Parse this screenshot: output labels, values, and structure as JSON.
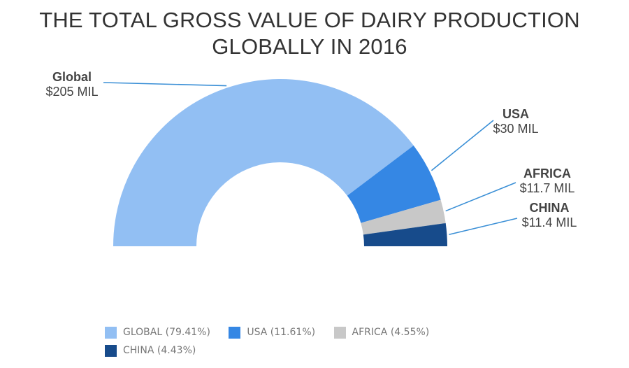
{
  "title": {
    "line1": "THE TOTAL GROSS VALUE OF DAIRY PRODUCTION",
    "line2": "GLOBALLY IN 2016"
  },
  "chart_data": {
    "type": "pie",
    "variant": "semi-donut",
    "title": "THE TOTAL GROSS VALUE OF DAIRY PRODUCTION GLOBALLY IN 2016",
    "categories": [
      "Global",
      "USA",
      "AFRICA",
      "CHINA"
    ],
    "values": [
      205,
      30,
      11.7,
      11.4
    ],
    "value_labels": [
      "$205 MIL",
      "$30 MIL",
      "$11.7 MIL",
      "$11.4 MIL"
    ],
    "percentages": [
      79.41,
      11.61,
      4.55,
      4.43
    ],
    "colors": [
      "#92bff3",
      "#3587e4",
      "#c8c8c8",
      "#174b8b"
    ],
    "legend": {
      "placement": "bottom",
      "entries": [
        "GLOBAL (79.41%)",
        "USA (11.61%)",
        "AFRICA (4.55%)",
        "CHINA (4.43%)"
      ]
    }
  }
}
